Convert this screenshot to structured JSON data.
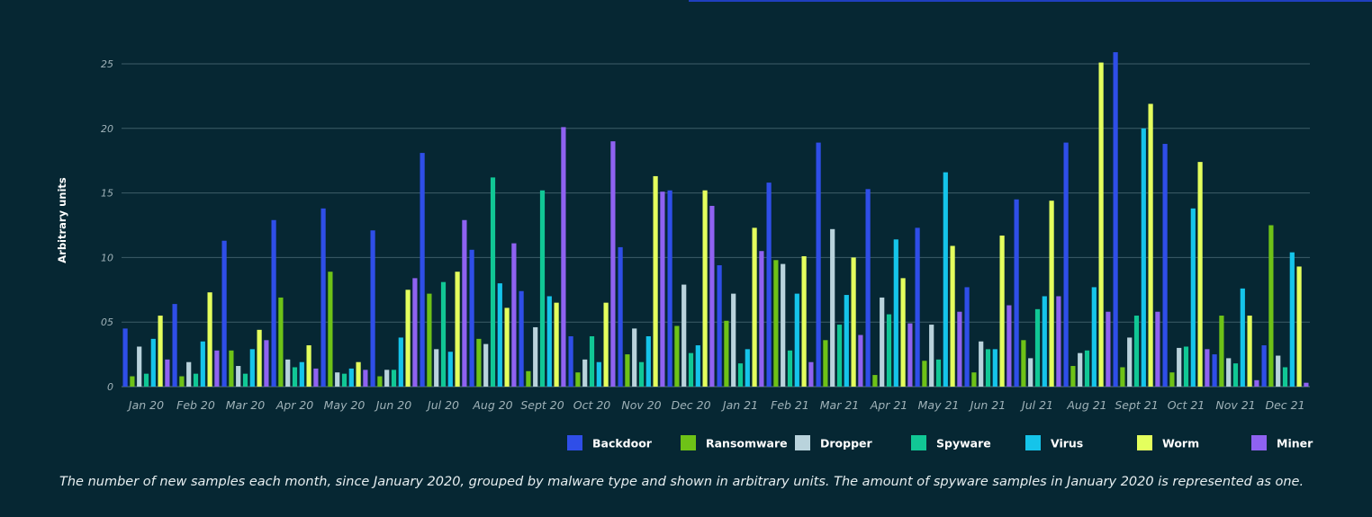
{
  "caption": "The number of new samples each month, since January 2020, grouped by malware type and shown in arbitrary units. The amount of spyware samples in January 2020 is represented as one.",
  "chart_data": {
    "type": "bar",
    "title": "",
    "xlabel": "",
    "ylabel": "Arbitrary units",
    "ylim": [
      0,
      25
    ],
    "yticks": [
      0,
      5,
      10,
      15,
      20,
      25
    ],
    "ytick_labels": [
      "0",
      "05",
      "10",
      "15",
      "20",
      "25"
    ],
    "grid": true,
    "legend_position": "bottom-right",
    "categories": [
      "Jan 20",
      "Feb 20",
      "Mar 20",
      "Apr 20",
      "May 20",
      "Jun 20",
      "Jul 20",
      "Aug 20",
      "Sept 20",
      "Oct 20",
      "Nov 20",
      "Dec 20",
      "Jan 21",
      "Feb 21",
      "Mar 21",
      "Apr 21",
      "May 21",
      "Jun 21",
      "Jul 21",
      "Aug 21",
      "Sept 21",
      "Oct 21",
      "Nov 21",
      "Dec 21"
    ],
    "series": [
      {
        "name": "Backdoor",
        "color": "#2f4ee8",
        "values": [
          4.5,
          6.4,
          11.3,
          12.9,
          13.8,
          12.1,
          18.1,
          10.6,
          7.4,
          3.9,
          10.8,
          15.2,
          9.4,
          15.8,
          18.9,
          15.3,
          12.3,
          7.7,
          14.5,
          18.9,
          25.9,
          18.8,
          2.5,
          3.2
        ]
      },
      {
        "name": "Ransomware",
        "color": "#6ec217",
        "values": [
          0.8,
          0.8,
          2.8,
          6.9,
          8.9,
          0.8,
          7.2,
          3.7,
          1.2,
          1.1,
          2.5,
          4.7,
          5.1,
          9.8,
          3.6,
          0.9,
          2.0,
          1.1,
          3.6,
          1.6,
          1.5,
          1.1,
          5.5,
          12.5
        ]
      },
      {
        "name": "Dropper",
        "color": "#b9d3dc",
        "values": [
          3.1,
          1.9,
          1.6,
          2.1,
          1.1,
          1.3,
          2.9,
          3.3,
          4.6,
          2.1,
          4.5,
          7.9,
          7.2,
          9.5,
          12.2,
          6.9,
          4.8,
          3.5,
          2.2,
          2.6,
          3.8,
          3.0,
          2.2,
          2.4
        ]
      },
      {
        "name": "Spyware",
        "color": "#11c795",
        "values": [
          1.0,
          1.0,
          1.0,
          1.5,
          1.0,
          1.3,
          8.1,
          16.2,
          15.2,
          3.9,
          1.9,
          2.6,
          1.8,
          2.8,
          4.8,
          5.6,
          2.1,
          2.9,
          6.0,
          2.8,
          5.5,
          3.1,
          1.8,
          1.5
        ]
      },
      {
        "name": "Virus",
        "color": "#15c4ea",
        "values": [
          3.7,
          3.5,
          2.9,
          1.9,
          1.4,
          3.8,
          2.7,
          8.0,
          7.0,
          1.9,
          3.9,
          3.2,
          2.9,
          7.2,
          7.1,
          11.4,
          16.6,
          2.9,
          7.0,
          7.7,
          20.0,
          13.8,
          7.6,
          10.4
        ]
      },
      {
        "name": "Worm",
        "color": "#e4ff5d",
        "values": [
          5.5,
          7.3,
          4.4,
          3.2,
          1.9,
          7.5,
          8.9,
          6.1,
          6.5,
          6.5,
          16.3,
          15.2,
          12.3,
          10.1,
          10.0,
          8.4,
          10.9,
          11.7,
          14.4,
          25.1,
          21.9,
          17.4,
          5.5,
          9.3
        ]
      },
      {
        "name": "Miner",
        "color": "#8f62f1",
        "values": [
          2.1,
          2.8,
          3.6,
          1.4,
          1.3,
          8.4,
          12.9,
          11.1,
          20.1,
          19.0,
          15.1,
          14.0,
          10.5,
          1.9,
          4.0,
          4.9,
          5.8,
          6.3,
          7.0,
          5.8,
          5.8,
          2.9,
          0.5,
          0.3
        ]
      }
    ]
  }
}
